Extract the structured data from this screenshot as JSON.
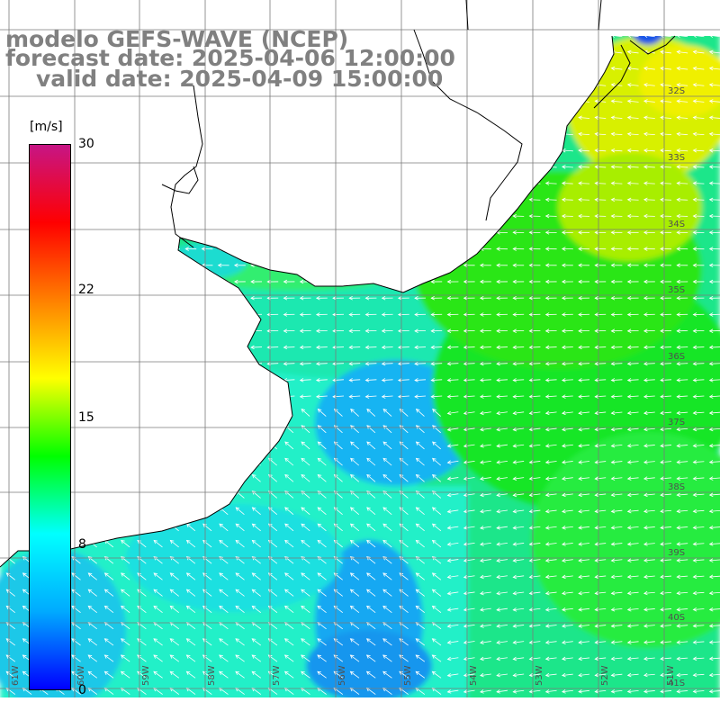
{
  "title": {
    "model": "modelo GEFS-WAVE (NCEP)",
    "forecast": "forecast date: 2025-04-06 12:00:00",
    "valid": "valid date: 2025-04-09 15:00:00"
  },
  "colorbar": {
    "unit": "[m/s]",
    "ticks": [
      {
        "label": "30",
        "value": 30
      },
      {
        "label": "22",
        "value": 22
      },
      {
        "label": "15",
        "value": 15
      },
      {
        "label": "8",
        "value": 8
      },
      {
        "label": "0",
        "value": 0
      }
    ],
    "colors": [
      "#0000ff",
      "#00aaff",
      "#00ffff",
      "#00ff00",
      "#ffff00",
      "#ff8000",
      "#ff0000",
      "#c71585"
    ]
  },
  "lat_labels": [
    "32S",
    "33S",
    "34S",
    "35S",
    "36S",
    "37S",
    "38S",
    "39S",
    "40S",
    "41S"
  ],
  "lon_labels": [
    "61W",
    "60W",
    "59W",
    "58W",
    "57W",
    "56W",
    "55W",
    "54W",
    "53W",
    "52W",
    "51W"
  ],
  "colors": {
    "land": "#ffffff",
    "coast": "#000000",
    "grid": "#7a7a7a",
    "arrows": "#ffffff",
    "title": "#808080"
  }
}
